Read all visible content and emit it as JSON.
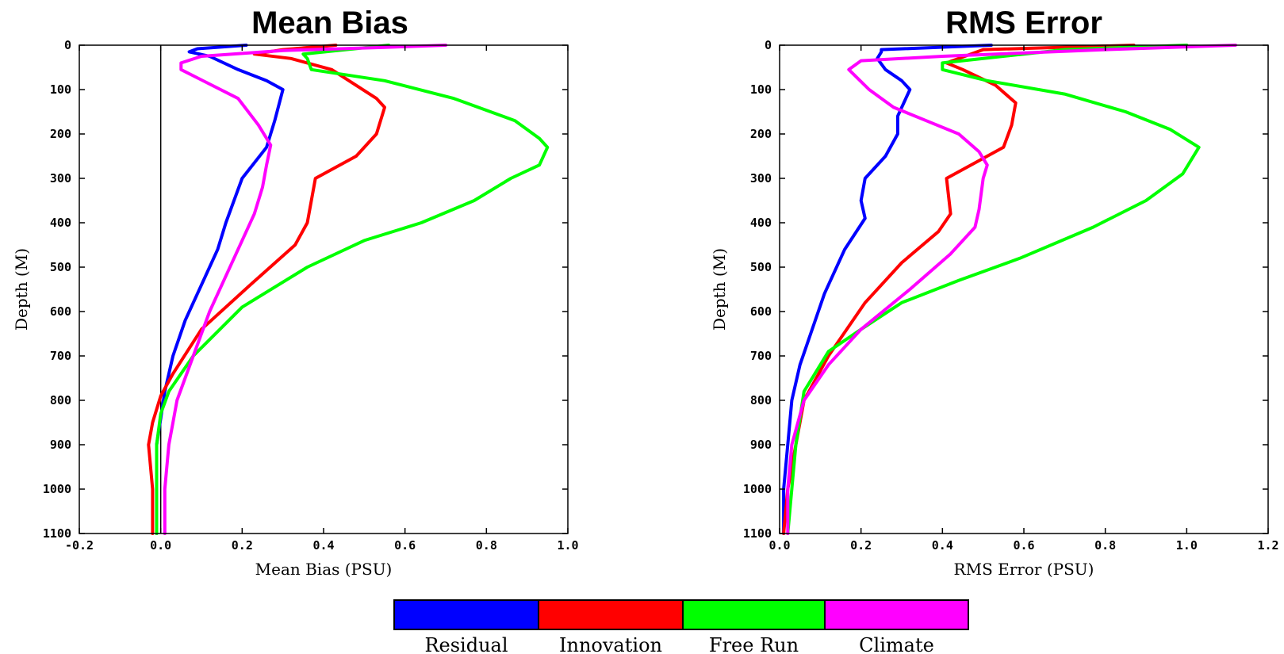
{
  "chart_data": [
    {
      "type": "line",
      "title": "Mean Bias",
      "xlabel": "Mean Bias (PSU)",
      "ylabel": "Depth (M)",
      "xlim": [
        -0.2,
        1.0
      ],
      "ylim": [
        0,
        1100
      ],
      "y_inverted": true,
      "xticks": [
        "-0.2",
        "0.0",
        "0.2",
        "0.4",
        "0.6",
        "0.8",
        "1.0"
      ],
      "yticks": [
        "0",
        "100",
        "200",
        "300",
        "400",
        "500",
        "600",
        "700",
        "800",
        "900",
        "1000",
        "1100"
      ],
      "zero_line": true,
      "grid": false,
      "series": [
        {
          "name": "Residual",
          "color": "#0000ff",
          "points": [
            [
              0.21,
              0
            ],
            [
              0.09,
              8
            ],
            [
              0.07,
              15
            ],
            [
              0.12,
              25
            ],
            [
              0.19,
              55
            ],
            [
              0.26,
              80
            ],
            [
              0.3,
              100
            ],
            [
              0.28,
              170
            ],
            [
              0.26,
              230
            ],
            [
              0.2,
              300
            ],
            [
              0.16,
              400
            ],
            [
              0.14,
              460
            ],
            [
              0.1,
              540
            ],
            [
              0.06,
              620
            ],
            [
              0.03,
              700
            ],
            [
              0.01,
              780
            ],
            [
              0.0,
              840
            ],
            [
              -0.01,
              900
            ],
            [
              -0.01,
              1000
            ],
            [
              -0.01,
              1100
            ]
          ]
        },
        {
          "name": "Innovation",
          "color": "#ff0000",
          "points": [
            [
              0.43,
              0
            ],
            [
              0.3,
              10
            ],
            [
              0.23,
              20
            ],
            [
              0.32,
              30
            ],
            [
              0.42,
              55
            ],
            [
              0.53,
              120
            ],
            [
              0.55,
              140
            ],
            [
              0.53,
              200
            ],
            [
              0.48,
              250
            ],
            [
              0.38,
              300
            ],
            [
              0.36,
              400
            ],
            [
              0.33,
              450
            ],
            [
              0.22,
              540
            ],
            [
              0.1,
              640
            ],
            [
              0.03,
              740
            ],
            [
              0.0,
              790
            ],
            [
              -0.02,
              850
            ],
            [
              -0.03,
              900
            ],
            [
              -0.02,
              1000
            ],
            [
              -0.02,
              1100
            ]
          ]
        },
        {
          "name": "Free Run",
          "color": "#00ff00",
          "points": [
            [
              0.56,
              0
            ],
            [
              0.35,
              20
            ],
            [
              0.36,
              30
            ],
            [
              0.37,
              55
            ],
            [
              0.55,
              80
            ],
            [
              0.72,
              120
            ],
            [
              0.87,
              170
            ],
            [
              0.93,
              210
            ],
            [
              0.95,
              230
            ],
            [
              0.93,
              270
            ],
            [
              0.86,
              300
            ],
            [
              0.77,
              350
            ],
            [
              0.64,
              400
            ],
            [
              0.5,
              440
            ],
            [
              0.36,
              500
            ],
            [
              0.2,
              590
            ],
            [
              0.08,
              700
            ],
            [
              0.02,
              780
            ],
            [
              0.0,
              830
            ],
            [
              -0.01,
              900
            ],
            [
              -0.01,
              1000
            ],
            [
              -0.01,
              1100
            ]
          ]
        },
        {
          "name": "Climate",
          "color": "#ff00ff",
          "points": [
            [
              0.7,
              0
            ],
            [
              0.55,
              5
            ],
            [
              0.3,
              12
            ],
            [
              0.1,
              25
            ],
            [
              0.05,
              40
            ],
            [
              0.05,
              55
            ],
            [
              0.19,
              120
            ],
            [
              0.24,
              180
            ],
            [
              0.27,
              225
            ],
            [
              0.26,
              270
            ],
            [
              0.25,
              320
            ],
            [
              0.23,
              380
            ],
            [
              0.2,
              440
            ],
            [
              0.16,
              520
            ],
            [
              0.12,
              600
            ],
            [
              0.08,
              700
            ],
            [
              0.04,
              800
            ],
            [
              0.03,
              850
            ],
            [
              0.02,
              900
            ],
            [
              0.01,
              1000
            ],
            [
              0.01,
              1100
            ]
          ]
        }
      ]
    },
    {
      "type": "line",
      "title": "RMS Error",
      "xlabel": "RMS Error (PSU)",
      "ylabel": "Depth (M)",
      "xlim": [
        0.0,
        1.2
      ],
      "ylim": [
        0,
        1100
      ],
      "y_inverted": true,
      "xticks": [
        "0.0",
        "0.2",
        "0.4",
        "0.6",
        "0.8",
        "1.0",
        "1.2"
      ],
      "yticks": [
        "0",
        "100",
        "200",
        "300",
        "400",
        "500",
        "600",
        "700",
        "800",
        "900",
        "1000",
        "1100"
      ],
      "zero_line": false,
      "grid": false,
      "series": [
        {
          "name": "Residual",
          "color": "#0000ff",
          "points": [
            [
              0.52,
              0
            ],
            [
              0.25,
              10
            ],
            [
              0.25,
              15
            ],
            [
              0.24,
              30
            ],
            [
              0.26,
              55
            ],
            [
              0.3,
              80
            ],
            [
              0.32,
              100
            ],
            [
              0.29,
              160
            ],
            [
              0.29,
              200
            ],
            [
              0.26,
              250
            ],
            [
              0.21,
              300
            ],
            [
              0.2,
              350
            ],
            [
              0.21,
              390
            ],
            [
              0.16,
              460
            ],
            [
              0.11,
              560
            ],
            [
              0.08,
              640
            ],
            [
              0.05,
              720
            ],
            [
              0.03,
              800
            ],
            [
              0.02,
              900
            ],
            [
              0.01,
              1000
            ],
            [
              0.01,
              1100
            ]
          ]
        },
        {
          "name": "Innovation",
          "color": "#ff0000",
          "points": [
            [
              0.87,
              0
            ],
            [
              0.5,
              10
            ],
            [
              0.41,
              40
            ],
            [
              0.45,
              55
            ],
            [
              0.53,
              90
            ],
            [
              0.58,
              130
            ],
            [
              0.57,
              180
            ],
            [
              0.55,
              230
            ],
            [
              0.49,
              260
            ],
            [
              0.41,
              300
            ],
            [
              0.42,
              380
            ],
            [
              0.39,
              420
            ],
            [
              0.3,
              490
            ],
            [
              0.21,
              580
            ],
            [
              0.12,
              700
            ],
            [
              0.06,
              800
            ],
            [
              0.04,
              900
            ],
            [
              0.02,
              1000
            ],
            [
              0.01,
              1100
            ]
          ]
        },
        {
          "name": "Free Run",
          "color": "#00ff00",
          "points": [
            [
              1.0,
              0
            ],
            [
              0.7,
              10
            ],
            [
              0.4,
              40
            ],
            [
              0.4,
              55
            ],
            [
              0.51,
              80
            ],
            [
              0.7,
              110
            ],
            [
              0.85,
              150
            ],
            [
              0.96,
              190
            ],
            [
              1.03,
              230
            ],
            [
              0.99,
              290
            ],
            [
              0.9,
              350
            ],
            [
              0.77,
              410
            ],
            [
              0.59,
              480
            ],
            [
              0.44,
              530
            ],
            [
              0.3,
              580
            ],
            [
              0.2,
              640
            ],
            [
              0.12,
              690
            ],
            [
              0.06,
              780
            ],
            [
              0.04,
              900
            ],
            [
              0.03,
              1000
            ],
            [
              0.02,
              1100
            ]
          ]
        },
        {
          "name": "Climate",
          "color": "#ff00ff",
          "points": [
            [
              1.12,
              0
            ],
            [
              0.8,
              10
            ],
            [
              0.4,
              25
            ],
            [
              0.2,
              35
            ],
            [
              0.17,
              55
            ],
            [
              0.22,
              100
            ],
            [
              0.28,
              140
            ],
            [
              0.36,
              170
            ],
            [
              0.44,
              200
            ],
            [
              0.49,
              240
            ],
            [
              0.51,
              270
            ],
            [
              0.5,
              300
            ],
            [
              0.49,
              370
            ],
            [
              0.48,
              410
            ],
            [
              0.42,
              470
            ],
            [
              0.32,
              550
            ],
            [
              0.2,
              640
            ],
            [
              0.12,
              720
            ],
            [
              0.06,
              800
            ],
            [
              0.03,
              900
            ],
            [
              0.02,
              1000
            ],
            [
              0.02,
              1100
            ]
          ]
        }
      ]
    }
  ],
  "legend": {
    "placement": "bottom-center",
    "items": [
      {
        "label": "Residual",
        "color": "#0000ff"
      },
      {
        "label": "Innovation",
        "color": "#ff0000"
      },
      {
        "label": "Free Run",
        "color": "#00ff00"
      },
      {
        "label": "Climate",
        "color": "#ff00ff"
      }
    ]
  }
}
